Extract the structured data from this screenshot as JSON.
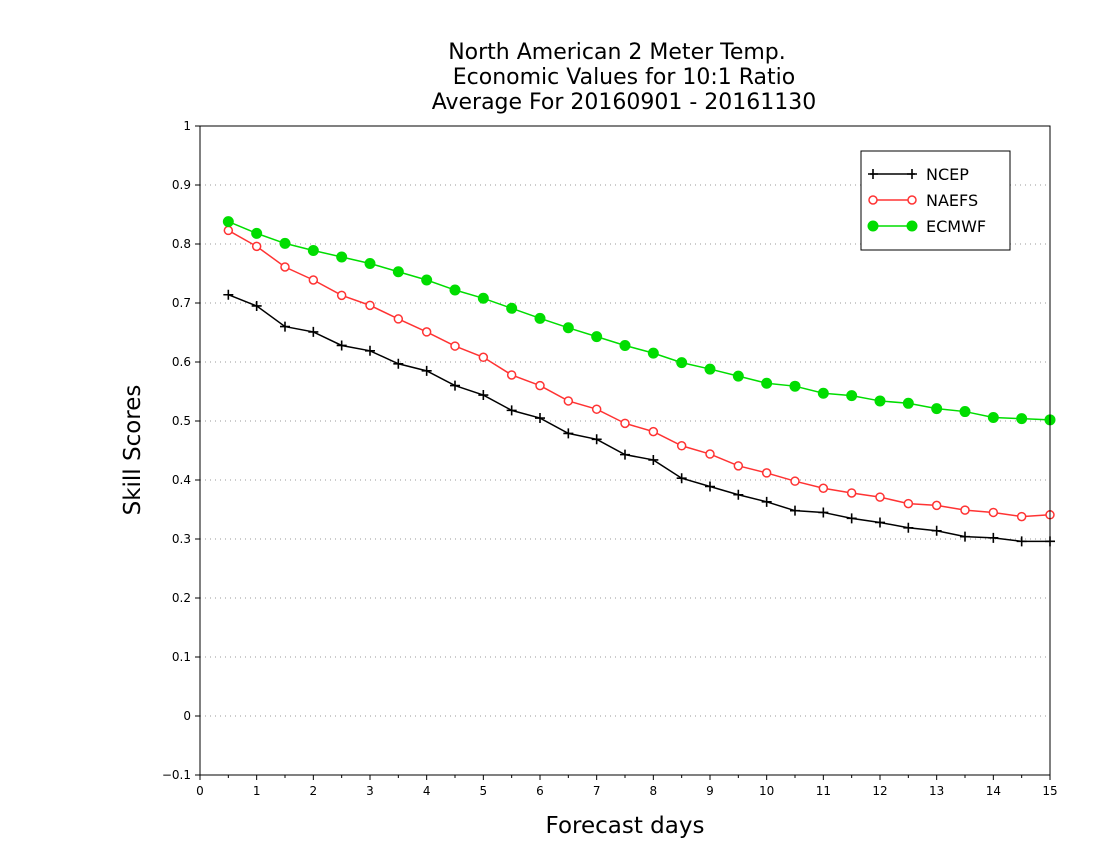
{
  "chart_data": {
    "type": "line",
    "title": [
      "North American 2 Meter Temp.",
      "Economic Values for 10:1 Ratio",
      "Average For 20160901 - 20161130"
    ],
    "xlabel": "Forecast days",
    "ylabel": "Skill Scores",
    "xlim": [
      0,
      15
    ],
    "ylim": [
      -0.1,
      1
    ],
    "x_ticks": [
      "0",
      "1",
      "2",
      "3",
      "4",
      "5",
      "6",
      "7",
      "8",
      "9",
      "10",
      "11",
      "12",
      "13",
      "14",
      "15"
    ],
    "y_ticks": [
      "-0.1",
      "0",
      "0.1",
      "0.2",
      "0.3",
      "0.4",
      "0.5",
      "0.6",
      "0.7",
      "0.8",
      "0.9",
      "1"
    ],
    "grid": "horizontal dotted",
    "legend_position": "top-right",
    "x": [
      0.5,
      1,
      1.5,
      2,
      2.5,
      3,
      3.5,
      4,
      4.5,
      5,
      5.5,
      6,
      6.5,
      7,
      7.5,
      8,
      8.5,
      9,
      9.5,
      10,
      10.5,
      11,
      11.5,
      12,
      12.5,
      13,
      13.5,
      14,
      14.5,
      15
    ],
    "series": [
      {
        "name": "NCEP",
        "color": "#000000",
        "marker": "plus",
        "values": [
          0.714,
          0.695,
          0.66,
          0.651,
          0.628,
          0.619,
          0.597,
          0.585,
          0.56,
          0.544,
          0.518,
          0.505,
          0.479,
          0.469,
          0.443,
          0.434,
          0.403,
          0.389,
          0.375,
          0.363,
          0.348,
          0.345,
          0.335,
          0.328,
          0.319,
          0.314,
          0.304,
          0.302,
          0.296,
          0.296
        ]
      },
      {
        "name": "NAEFS",
        "color": "#ff3333",
        "marker": "open-circle",
        "values": [
          0.823,
          0.796,
          0.761,
          0.739,
          0.713,
          0.696,
          0.673,
          0.651,
          0.627,
          0.608,
          0.578,
          0.56,
          0.534,
          0.52,
          0.496,
          0.482,
          0.458,
          0.444,
          0.424,
          0.412,
          0.398,
          0.386,
          0.378,
          0.371,
          0.36,
          0.357,
          0.349,
          0.345,
          0.338,
          0.341
        ]
      },
      {
        "name": "ECMWF",
        "color": "#00dd00",
        "marker": "filled-circle",
        "values": [
          0.838,
          0.818,
          0.801,
          0.789,
          0.778,
          0.767,
          0.753,
          0.739,
          0.722,
          0.708,
          0.691,
          0.674,
          0.658,
          0.643,
          0.628,
          0.615,
          0.599,
          0.588,
          0.576,
          0.564,
          0.559,
          0.547,
          0.543,
          0.534,
          0.53,
          0.521,
          0.516,
          0.506,
          0.504,
          0.502
        ]
      }
    ]
  }
}
